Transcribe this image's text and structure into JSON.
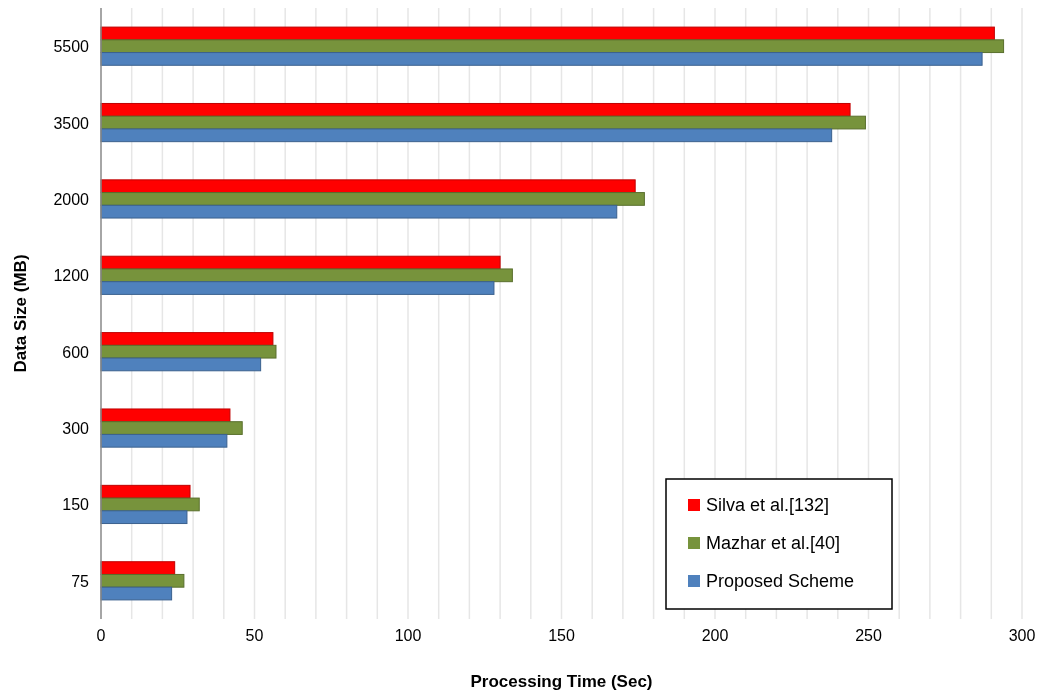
{
  "chart_data": {
    "type": "bar",
    "orientation": "horizontal",
    "xlabel": "Processing Time (Sec)",
    "ylabel": "Data Size (MB)",
    "categories": [
      "5500",
      "3500",
      "2000",
      "1200",
      "600",
      "300",
      "150",
      "75"
    ],
    "series": [
      {
        "name": "Silva et al.[132]",
        "color": "#ff0000",
        "values": [
          291,
          244,
          174,
          130,
          56,
          42,
          29,
          24
        ]
      },
      {
        "name": "Mazhar et al.[40]",
        "color": "#77933c",
        "values": [
          294,
          249,
          177,
          134,
          57,
          46,
          32,
          27
        ]
      },
      {
        "name": "Proposed Scheme",
        "color": "#4f81bd",
        "values": [
          287,
          238,
          168,
          128,
          52,
          41,
          28,
          23
        ]
      }
    ],
    "xlim": [
      0,
      300
    ],
    "xticks": [
      0,
      {
        "value": 10,
        "label": null
      },
      {
        "value": 20,
        "label": null
      },
      {
        "value": 30,
        "label": null
      },
      {
        "value": 40,
        "label": null
      },
      50,
      {
        "value": 60,
        "label": null
      },
      {
        "value": 70,
        "label": null
      },
      {
        "value": 80,
        "label": null
      },
      {
        "value": 90,
        "label": null
      },
      100,
      {
        "value": 110,
        "label": null
      },
      {
        "value": 120,
        "label": null
      },
      {
        "value": 130,
        "label": null
      },
      {
        "value": 140,
        "label": null
      },
      150,
      {
        "value": 160,
        "label": null
      },
      {
        "value": 170,
        "label": null
      },
      {
        "value": 180,
        "label": null
      },
      {
        "value": 190,
        "label": null
      },
      200,
      {
        "value": 210,
        "label": null
      },
      {
        "value": 220,
        "label": null
      },
      {
        "value": 230,
        "label": null
      },
      {
        "value": 240,
        "label": null
      },
      250,
      {
        "value": 260,
        "label": null
      },
      {
        "value": 270,
        "label": null
      },
      {
        "value": 280,
        "label": null
      },
      {
        "value": 290,
        "label": null
      },
      300
    ],
    "grid": "x",
    "legend": "bottom right"
  }
}
